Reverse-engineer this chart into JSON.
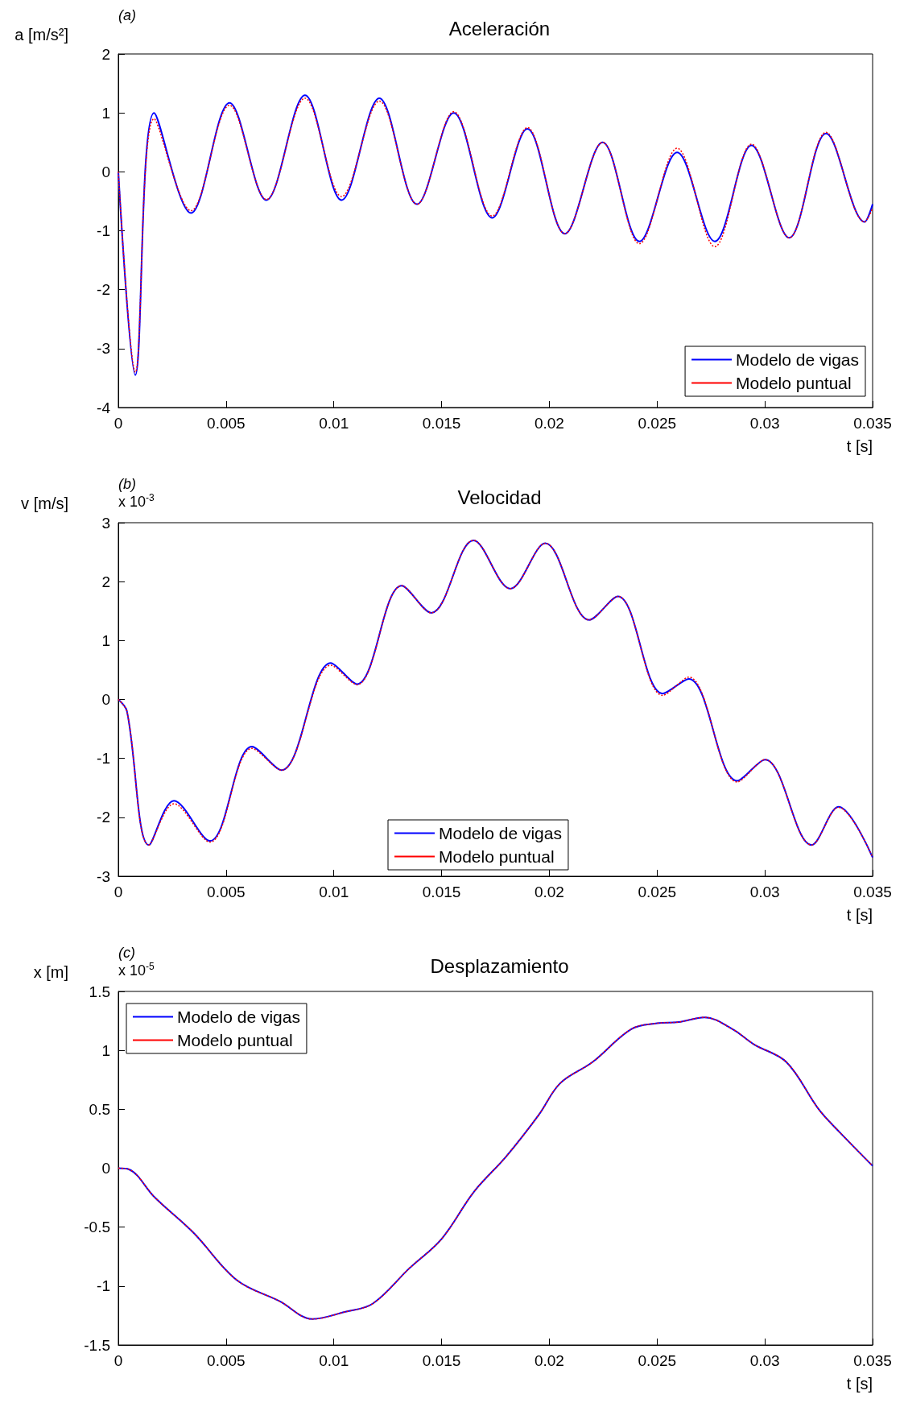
{
  "chart_data": [
    {
      "type": "line",
      "title": "Aceleración",
      "xlabel": "t [s]",
      "ylabel": "a [m/s²]",
      "annotations": [
        "(a)"
      ],
      "legend": "bottom right",
      "grid": false,
      "line_style": "solid",
      "marker": "none",
      "xlim": [
        0,
        0.035
      ],
      "xticks": [
        0,
        0.005,
        0.01,
        0.015,
        0.02,
        0.025,
        0.03,
        0.035
      ],
      "ylim": [
        -4,
        2
      ],
      "yticks": [
        -4,
        -3,
        -2,
        -1,
        0,
        1,
        2
      ],
      "x": [
        0,
        0.00079,
        0.00166,
        0.00337,
        0.00516,
        0.00687,
        0.00866,
        0.01036,
        0.01211,
        0.01386,
        0.01556,
        0.01735,
        0.01898,
        0.02072,
        0.02247,
        0.02418,
        0.02593,
        0.02768,
        0.02938,
        0.03113,
        0.03284,
        0.03463,
        0.035
      ],
      "series": [
        {
          "name": "Modelo de vigas",
          "color": "#0000ff",
          "values": [
            0,
            -3.45,
            1.0,
            -0.7,
            1.17,
            -0.48,
            1.3,
            -0.48,
            1.25,
            -0.55,
            1.0,
            -0.78,
            0.73,
            -1.05,
            0.5,
            -1.18,
            0.33,
            -1.18,
            0.45,
            -1.12,
            0.65,
            -0.85,
            -0.55
          ]
        },
        {
          "name": "Modelo puntual",
          "color": "#ff0000",
          "line_style": "dotted",
          "values": [
            0,
            -3.4,
            0.9,
            -0.66,
            1.13,
            -0.47,
            1.25,
            -0.42,
            1.2,
            -0.55,
            1.02,
            -0.75,
            0.75,
            -1.05,
            0.5,
            -1.22,
            0.4,
            -1.27,
            0.47,
            -1.12,
            0.67,
            -0.85,
            -0.62
          ]
        }
      ]
    },
    {
      "type": "line",
      "title": "Velocidad",
      "xlabel": "t [s]",
      "ylabel": "v [m/s]",
      "annotations": [
        "(b)",
        "x 10$^{-3}$"
      ],
      "legend": "bottom",
      "grid": false,
      "line_style": "solid",
      "marker": "none",
      "xlim": [
        0,
        0.035
      ],
      "xticks": [
        0,
        0.005,
        0.01,
        0.015,
        0.02,
        0.025,
        0.03,
        0.035
      ],
      "ylim": [
        -3,
        3
      ],
      "yticks": [
        -3,
        -2,
        -1,
        0,
        1,
        2,
        3
      ],
      "x": [
        0,
        0.0004,
        0.00142,
        0.00258,
        0.00425,
        0.0062,
        0.00757,
        0.00986,
        0.01107,
        0.01315,
        0.01452,
        0.01648,
        0.01819,
        0.01981,
        0.02185,
        0.02318,
        0.02526,
        0.02647,
        0.02872,
        0.03001,
        0.03217,
        0.03342,
        0.035
      ],
      "series": [
        {
          "name": "Modelo de vigas",
          "color": "#0000ff",
          "values": [
            0,
            -0.2,
            -2.47,
            -1.72,
            -2.4,
            -0.8,
            -1.2,
            0.62,
            0.26,
            1.93,
            1.47,
            2.7,
            1.88,
            2.65,
            1.35,
            1.75,
            0.1,
            0.35,
            -1.38,
            -1.02,
            -2.47,
            -1.82,
            -2.68
          ]
        },
        {
          "name": "Modelo puntual",
          "color": "#ff0000",
          "line_style": "dotted",
          "values": [
            0,
            -0.2,
            -2.47,
            -1.77,
            -2.42,
            -0.83,
            -1.2,
            0.58,
            0.25,
            1.93,
            1.47,
            2.7,
            1.88,
            2.65,
            1.35,
            1.75,
            0.07,
            0.38,
            -1.4,
            -1.02,
            -2.47,
            -1.83,
            -2.68
          ]
        }
      ]
    },
    {
      "type": "line",
      "title": "Desplazamiento",
      "xlabel": "t [s]",
      "ylabel": "x [m]",
      "annotations": [
        "(c)",
        "x 10$^{-5}$"
      ],
      "legend": "top left",
      "grid": false,
      "line_style": "solid",
      "marker": "none",
      "xlim": [
        0,
        0.035
      ],
      "xticks": [
        0,
        0.005,
        0.01,
        0.015,
        0.02,
        0.025,
        0.03,
        0.035
      ],
      "ylim": [
        -1.5,
        1.5
      ],
      "yticks": [
        -1.5,
        -1,
        -0.5,
        0,
        0.5,
        1,
        1.5
      ],
      "x": [
        0,
        0.0005,
        0.0017,
        0.0035,
        0.0055,
        0.0075,
        0.009,
        0.0105,
        0.0118,
        0.0135,
        0.015,
        0.0165,
        0.018,
        0.0195,
        0.0205,
        0.022,
        0.0238,
        0.025,
        0.026,
        0.0272,
        0.0285,
        0.0295,
        0.031,
        0.0325,
        0.0335,
        0.035
      ],
      "series": [
        {
          "name": "Modelo de vigas",
          "color": "#0000ff",
          "values": [
            0,
            -0.01,
            -0.25,
            -0.55,
            -0.95,
            -1.13,
            -1.28,
            -1.22,
            -1.15,
            -0.85,
            -0.6,
            -0.2,
            0.1,
            0.45,
            0.72,
            0.9,
            1.18,
            1.23,
            1.24,
            1.28,
            1.18,
            1.05,
            0.9,
            0.5,
            0.3,
            0.02
          ]
        },
        {
          "name": "Modelo puntual",
          "color": "#ff0000",
          "line_style": "dotted",
          "values": [
            0,
            -0.01,
            -0.25,
            -0.55,
            -0.95,
            -1.13,
            -1.28,
            -1.22,
            -1.15,
            -0.85,
            -0.6,
            -0.2,
            0.1,
            0.45,
            0.72,
            0.9,
            1.18,
            1.23,
            1.24,
            1.28,
            1.18,
            1.05,
            0.9,
            0.5,
            0.3,
            0.02
          ]
        }
      ]
    }
  ]
}
